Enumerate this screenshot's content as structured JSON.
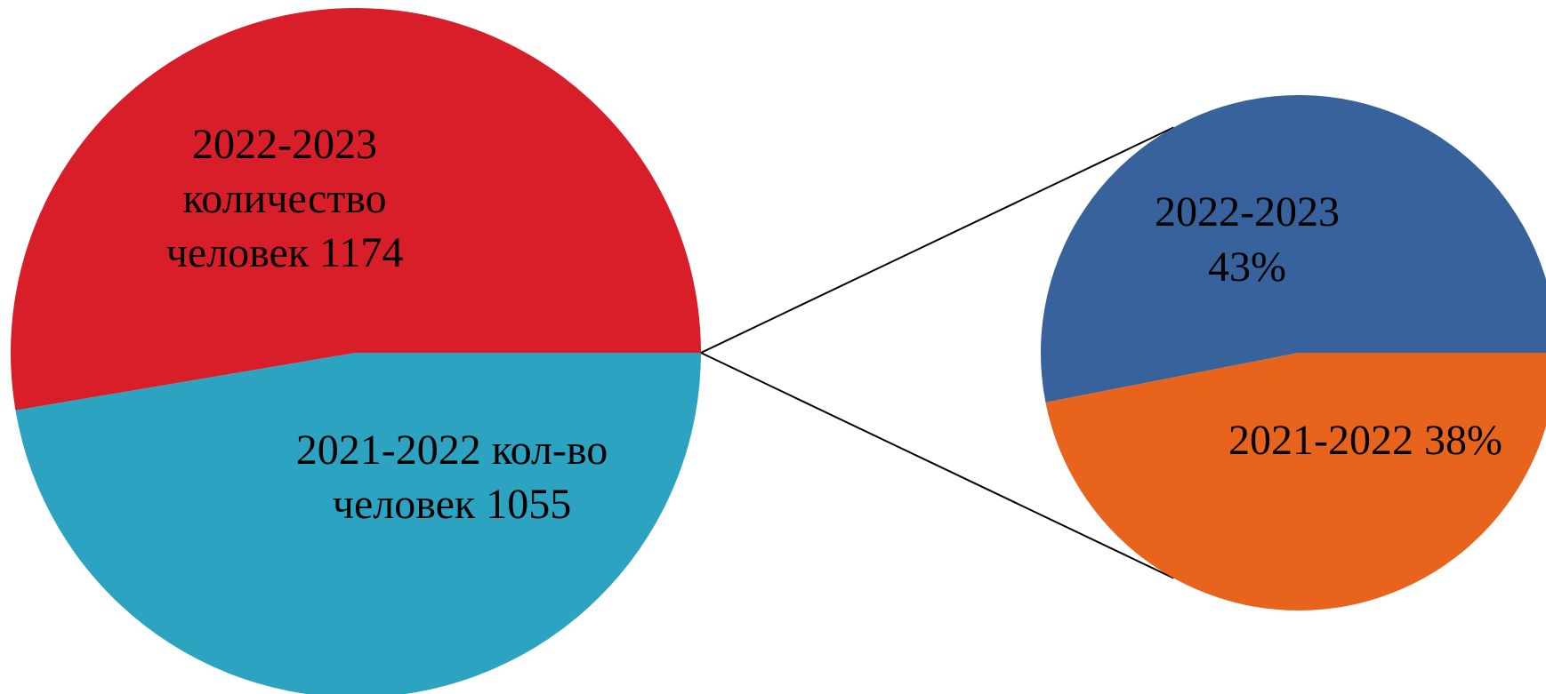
{
  "chart_data": [
    {
      "type": "pie",
      "slices": [
        {
          "key": "s2022",
          "value": 1174,
          "color": "#d81e29",
          "label_lines": [
            "2022-2023",
            "количество",
            "человек 1174"
          ]
        },
        {
          "key": "s2021",
          "value": 1055,
          "color": "#2ca3c0",
          "label_lines": [
            "2021-2022 кол-во",
            "человек 1055"
          ]
        }
      ]
    },
    {
      "type": "pie",
      "slices": [
        {
          "key": "p2022",
          "value": 43,
          "unit": "%",
          "color": "#38629b",
          "label_lines": [
            "2022-2023",
            "43%"
          ]
        },
        {
          "key": "p2021",
          "value": 38,
          "unit": "%",
          "color": "#e8641d",
          "label_lines": [
            "2021-2022 38%"
          ]
        }
      ]
    }
  ]
}
